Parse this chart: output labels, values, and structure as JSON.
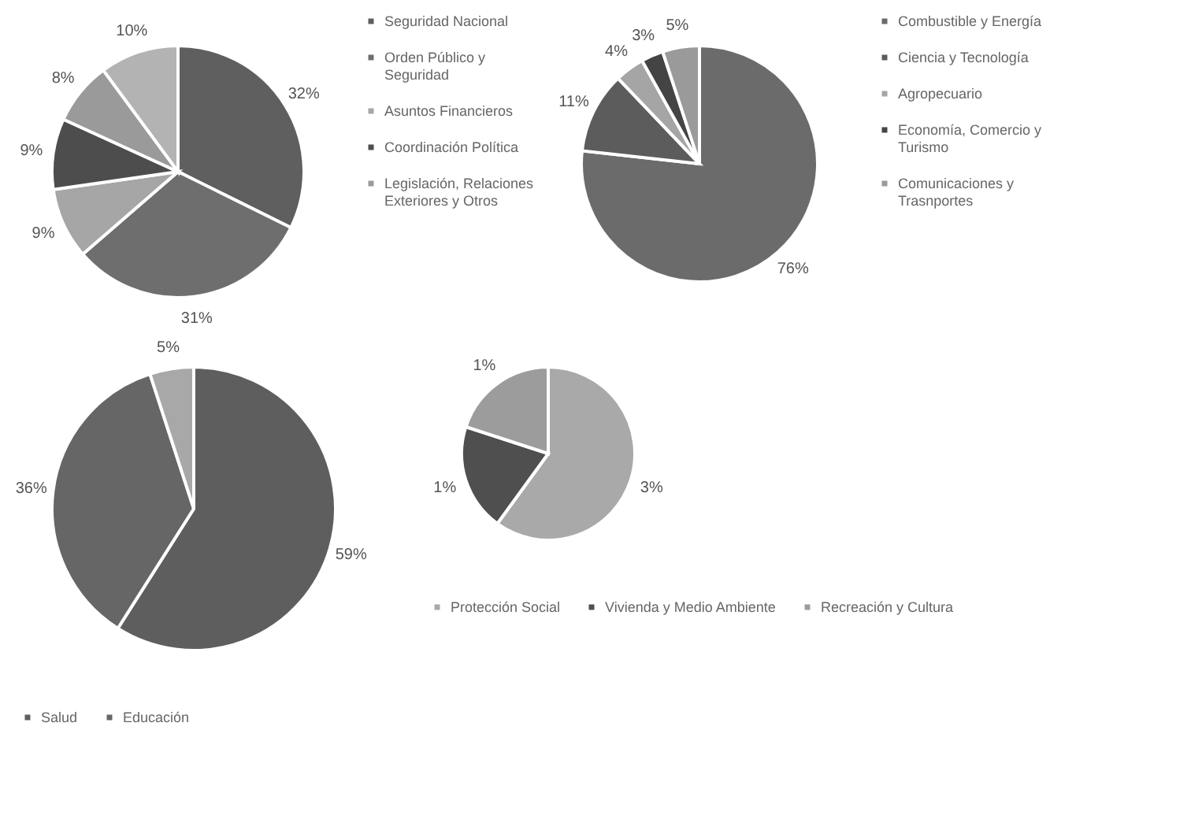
{
  "chart_data": [
    {
      "type": "pie",
      "categories": [
        "Seguridad Nacional",
        "Orden Público y Seguridad",
        "Asuntos Financieros",
        "Coordinación Política",
        "Legislación, Relaciones Exteriores y Otros",
        null
      ],
      "values": [
        32,
        31,
        9,
        9,
        8,
        10
      ],
      "value_labels": [
        "32%",
        "31%",
        "9%",
        "9%",
        "8%",
        "10%"
      ],
      "colors": [
        "#5f5f5f",
        "#6e6e6e",
        "#a6a6a6",
        "#4d4d4d",
        "#9a9a9a",
        "#b3b3b3"
      ],
      "legend": "right"
    },
    {
      "type": "pie",
      "categories": [
        "Combustible y Energía",
        "Ciencia y Tecnología",
        "Agropecuario",
        "Economía, Comercio y Turismo",
        "Comunicaciones y Trasnportes"
      ],
      "values": [
        76,
        11,
        4,
        3,
        5
      ],
      "value_labels": [
        "76%",
        "11%",
        "4%",
        "3%",
        "5%"
      ],
      "colors": [
        "#6b6b6b",
        "#5c5c5c",
        "#a5a5a5",
        "#444444",
        "#9a9a9a"
      ],
      "legend": "right"
    },
    {
      "type": "pie",
      "categories": [
        "Salud",
        "Educación",
        null
      ],
      "values": [
        59,
        36,
        5
      ],
      "value_labels": [
        "59%",
        "36%",
        "5%"
      ],
      "colors": [
        "#5e5e5e",
        "#666666",
        "#a8a8a8"
      ],
      "legend": "bottom"
    },
    {
      "type": "pie",
      "categories": [
        "Protección Social",
        "Vivienda y Medio Ambiente",
        "Recreación y Cultura"
      ],
      "values": [
        3,
        1,
        1
      ],
      "value_labels": [
        "3%",
        "1%",
        "1%"
      ],
      "colors": [
        "#a9a9a9",
        "#4f4f4f",
        "#9c9c9c"
      ],
      "legend": "bottom"
    }
  ]
}
